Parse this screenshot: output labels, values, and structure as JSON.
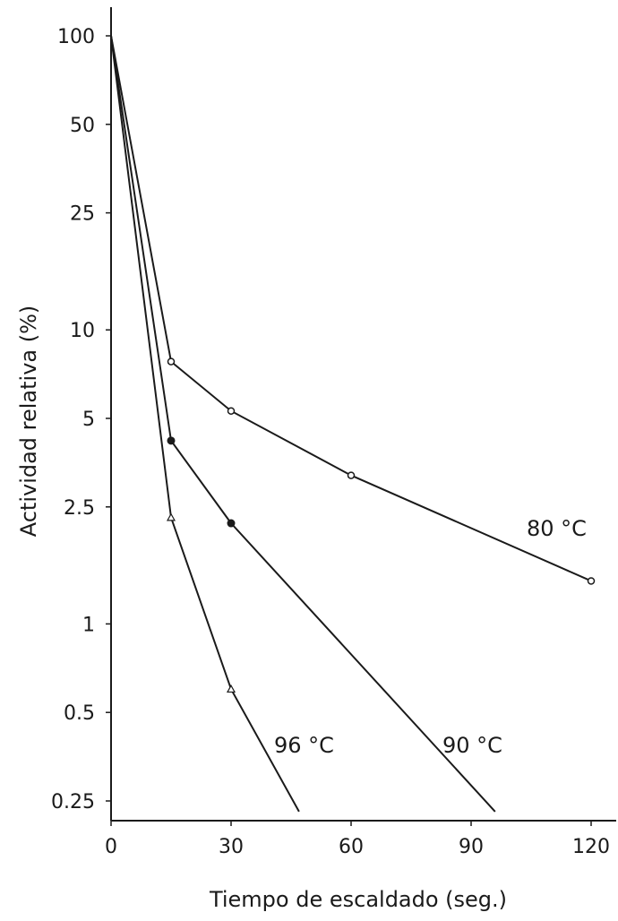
{
  "chart_data": {
    "type": "line",
    "xlabel": "Tiempo de escaldado (seg.)",
    "ylabel": "Actividad relativa (%)",
    "yscale": "log",
    "xlim": [
      0,
      125
    ],
    "ylim": [
      0.23,
      120
    ],
    "x_ticks": [
      {
        "value": 0,
        "label": "0"
      },
      {
        "value": 30,
        "label": "30"
      },
      {
        "value": 60,
        "label": "60"
      },
      {
        "value": 90,
        "label": "90"
      },
      {
        "value": 120,
        "label": "120"
      }
    ],
    "y_ticks": [
      {
        "value": 100,
        "label": "100"
      },
      {
        "value": 50,
        "label": "50"
      },
      {
        "value": 25,
        "label": "25"
      },
      {
        "value": 10,
        "label": "10"
      },
      {
        "value": 5,
        "label": "5"
      },
      {
        "value": 2.5,
        "label": "2.5"
      },
      {
        "value": 1,
        "label": "1"
      },
      {
        "value": 0.5,
        "label": "0.5"
      },
      {
        "value": 0.25,
        "label": "0.25"
      }
    ],
    "grid": false,
    "series": [
      {
        "name": "80 °C",
        "marker": "open-circle",
        "points": [
          [
            0,
            100
          ],
          [
            15,
            7.8
          ],
          [
            30,
            5.3
          ],
          [
            60,
            3.2
          ],
          [
            120,
            1.4
          ]
        ]
      },
      {
        "name": "90 °C",
        "marker": "filled-circle",
        "points": [
          [
            0,
            100
          ],
          [
            15,
            4.2
          ],
          [
            30,
            2.2
          ],
          [
            96,
            0.23
          ]
        ]
      },
      {
        "name": "96 °C",
        "marker": "triangle",
        "points": [
          [
            0,
            100
          ],
          [
            15,
            2.3
          ],
          [
            30,
            0.6
          ],
          [
            47,
            0.23
          ]
        ]
      }
    ]
  }
}
